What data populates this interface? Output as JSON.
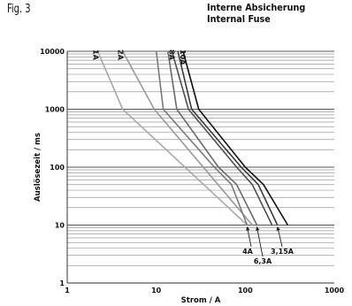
{
  "figure_label": "Fig. 3",
  "title_lines": [
    "Interne Absicherung",
    "Internal Fuse"
  ],
  "chart_data": {
    "type": "line",
    "title": "Interne Absicherung / Internal Fuse",
    "xlabel": "Strom / A",
    "ylabel": "Auslösezeit / ms",
    "xscale": "log",
    "yscale": "log",
    "xlim": [
      1,
      1000
    ],
    "ylim": [
      1,
      10000
    ],
    "x_ticks": [
      "1",
      "10",
      "100",
      "1000"
    ],
    "y_ticks": [
      "1",
      "10",
      "100",
      "1000",
      "10000"
    ],
    "grid": "horizontal",
    "series": [
      {
        "name": "1A",
        "color": "#a8a8a8",
        "x": [
          2.2,
          4.2,
          105
        ],
        "y": [
          10000,
          1000,
          10
        ]
      },
      {
        "name": "2A",
        "color": "#999999",
        "x": [
          4.2,
          9.5,
          120
        ],
        "y": [
          10000,
          1000,
          10
        ]
      },
      {
        "name": "4A",
        "color": "#7a7a7a",
        "x": [
          10,
          12,
          45,
          70,
          105
        ],
        "y": [
          10000,
          1000,
          100,
          50,
          10
        ]
      },
      {
        "name": "6,3A",
        "color": "#6a6a6a",
        "x": [
          13.5,
          17,
          50,
          80,
          135
        ],
        "y": [
          10000,
          1000,
          100,
          50,
          10
        ]
      },
      {
        "name": "8A",
        "color": "#505050",
        "x": [
          15,
          23,
          80,
          120,
          200
        ],
        "y": [
          10000,
          1000,
          100,
          50,
          10
        ]
      },
      {
        "name": "3,15A",
        "color": "#3a3a3a",
        "x": [
          17.5,
          25,
          90,
          140,
          230
        ],
        "y": [
          10000,
          1000,
          100,
          50,
          10
        ]
      },
      {
        "name": "10A",
        "color": "#111111",
        "x": [
          20,
          30,
          100,
          160,
          300
        ],
        "y": [
          10000,
          1000,
          100,
          50,
          10
        ]
      }
    ],
    "top_labels": [
      "1A",
      "2A",
      "8A",
      "10A"
    ],
    "bottom_labels": [
      "4A",
      "6,3A",
      "3,15A"
    ]
  }
}
